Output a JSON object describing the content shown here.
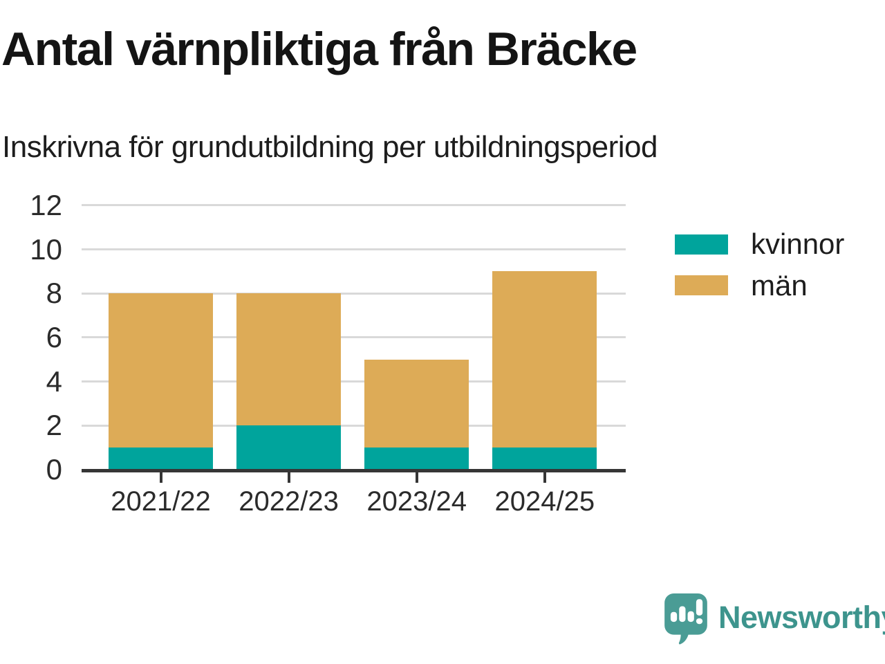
{
  "chart_data": {
    "type": "bar",
    "stacked": true,
    "title": "Antal värnpliktiga från Bräcke",
    "subtitle": "Inskrivna för grundutbildning per utbildningsperiod",
    "categories": [
      "2021/22",
      "2022/23",
      "2023/24",
      "2024/25"
    ],
    "series": [
      {
        "name": "kvinnor",
        "color": "#00a49c",
        "values": [
          1,
          2,
          1,
          1
        ]
      },
      {
        "name": "män",
        "color": "#ddab57",
        "values": [
          7,
          6,
          4,
          8
        ]
      }
    ],
    "stack_totals": [
      8,
      8,
      5,
      9
    ],
    "xlabel": "",
    "ylabel": "",
    "ylim": [
      0,
      12
    ],
    "yticks": [
      0,
      2,
      4,
      6,
      8,
      10,
      12
    ],
    "grid": true,
    "legend_position": "right"
  },
  "legend": {
    "items": [
      {
        "label": "kvinnor",
        "color": "#00a49c"
      },
      {
        "label": "män",
        "color": "#ddab57"
      }
    ]
  },
  "style": {
    "grid_color": "#d9d9d9",
    "axis_color": "#363636",
    "tick_text_color": "#2b2b2b"
  },
  "branding": {
    "logo_text": "Newsworthy",
    "icon_name": "newsworthy-speech-bubble-bar-chart-icon",
    "icon_color": "#4a9c95",
    "text_color": "#3d948d"
  }
}
